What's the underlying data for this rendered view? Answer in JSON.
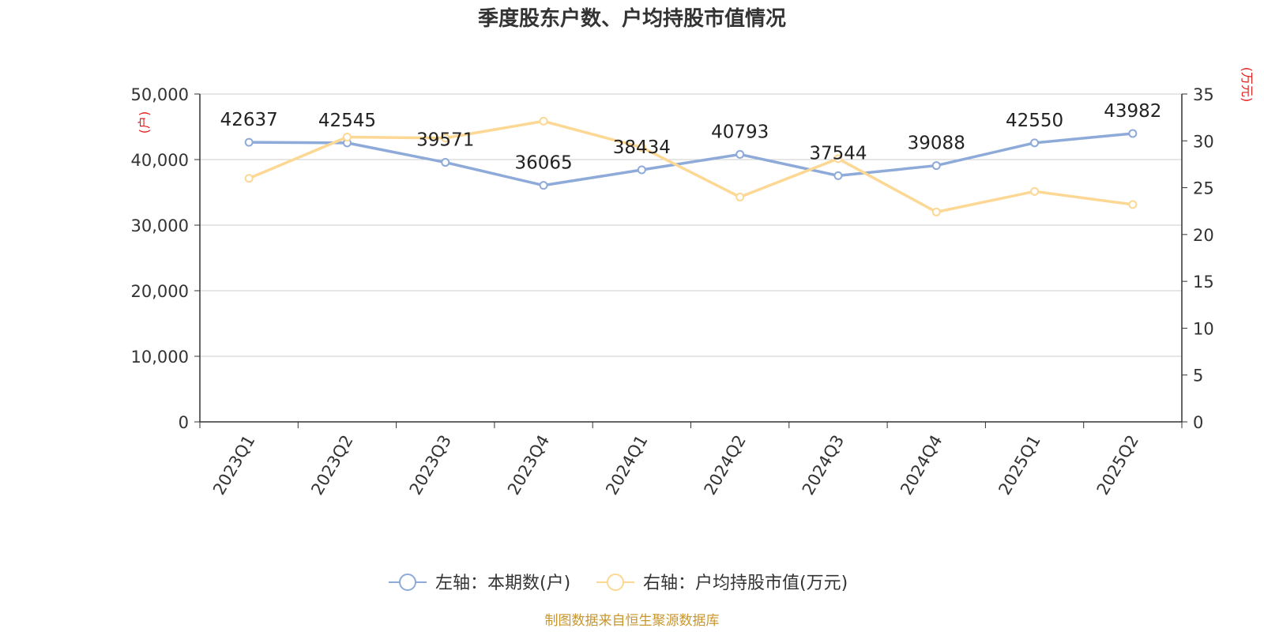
{
  "title": "季度股东户数、户均持股市值情况",
  "source": "制图数据来自恒生聚源数据库",
  "colors": {
    "left_series": "#8eaad9",
    "right_series": "#fcd894",
    "unit_text": "#e01f1f",
    "source_text": "#c8962e"
  },
  "chart_data": {
    "type": "line",
    "title": "季度股东户数、户均持股市值情况",
    "categories": [
      "2023Q1",
      "2023Q2",
      "2023Q3",
      "2023Q4",
      "2024Q1",
      "2024Q2",
      "2024Q3",
      "2024Q4",
      "2025Q1",
      "2025Q2"
    ],
    "left_axis": {
      "unit": "(户)",
      "range": [
        0,
        50000
      ],
      "ticks": [
        "0",
        "10,000",
        "20,000",
        "30,000",
        "40,000",
        "50,000"
      ]
    },
    "right_axis": {
      "unit": "(万元)",
      "range": [
        0,
        35
      ],
      "ticks": [
        "0",
        "5",
        "10",
        "15",
        "20",
        "25",
        "30",
        "35"
      ]
    },
    "grid": true,
    "legend_position": "bottom",
    "series": [
      {
        "name": "左轴：本期数(户)",
        "axis": "left",
        "values": [
          42637,
          42545,
          39571,
          36065,
          38434,
          40793,
          37544,
          39088,
          42550,
          43982
        ],
        "labels": [
          "42637",
          "42545",
          "39571",
          "36065",
          "38434",
          "40793",
          "37544",
          "39088",
          "42550",
          "43982"
        ]
      },
      {
        "name": "右轴：户均持股市值(万元)",
        "axis": "right",
        "values": [
          26.0,
          30.4,
          30.3,
          32.1,
          29.3,
          24.0,
          28.1,
          22.4,
          24.6,
          23.2
        ]
      }
    ]
  }
}
